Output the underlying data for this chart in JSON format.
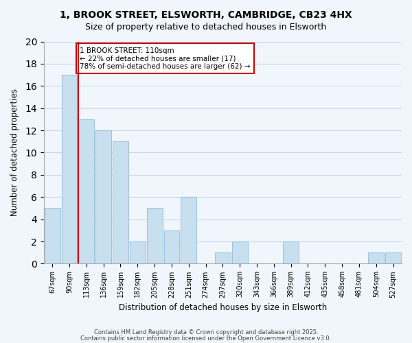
{
  "title": "1, BROOK STREET, ELSWORTH, CAMBRIDGE, CB23 4HX",
  "subtitle": "Size of property relative to detached houses in Elsworth",
  "xlabel": "Distribution of detached houses by size in Elsworth",
  "ylabel": "Number of detached properties",
  "bar_labels": [
    "67sqm",
    "90sqm",
    "113sqm",
    "136sqm",
    "159sqm",
    "182sqm",
    "205sqm",
    "228sqm",
    "251sqm",
    "274sqm",
    "297sqm",
    "320sqm",
    "343sqm",
    "366sqm",
    "389sqm",
    "412sqm",
    "435sqm",
    "458sqm",
    "481sqm",
    "504sqm",
    "527sqm"
  ],
  "bar_heights": [
    5,
    17,
    13,
    12,
    11,
    2,
    5,
    3,
    6,
    0,
    1,
    2,
    0,
    0,
    2,
    0,
    0,
    0,
    0,
    1,
    1
  ],
  "bar_color": "#c8dff0",
  "bar_edge_color": "#a0c4e0",
  "marker_line_color": "#cc0000",
  "annotation_line1": "1 BROOK STREET: 110sqm",
  "annotation_line2": "← 22% of detached houses are smaller (17)",
  "annotation_line3": "78% of semi-detached houses are larger (62) →",
  "annotation_box_edge": "#cc0000",
  "ylim": [
    0,
    20
  ],
  "yticks": [
    0,
    2,
    4,
    6,
    8,
    10,
    12,
    14,
    16,
    18,
    20
  ],
  "grid_color": "#c8d8e8",
  "background_color": "#f0f6fc",
  "footer1": "Contains HM Land Registry data © Crown copyright and database right 2025.",
  "footer2": "Contains public sector information licensed under the Open Government Licence v3.0."
}
